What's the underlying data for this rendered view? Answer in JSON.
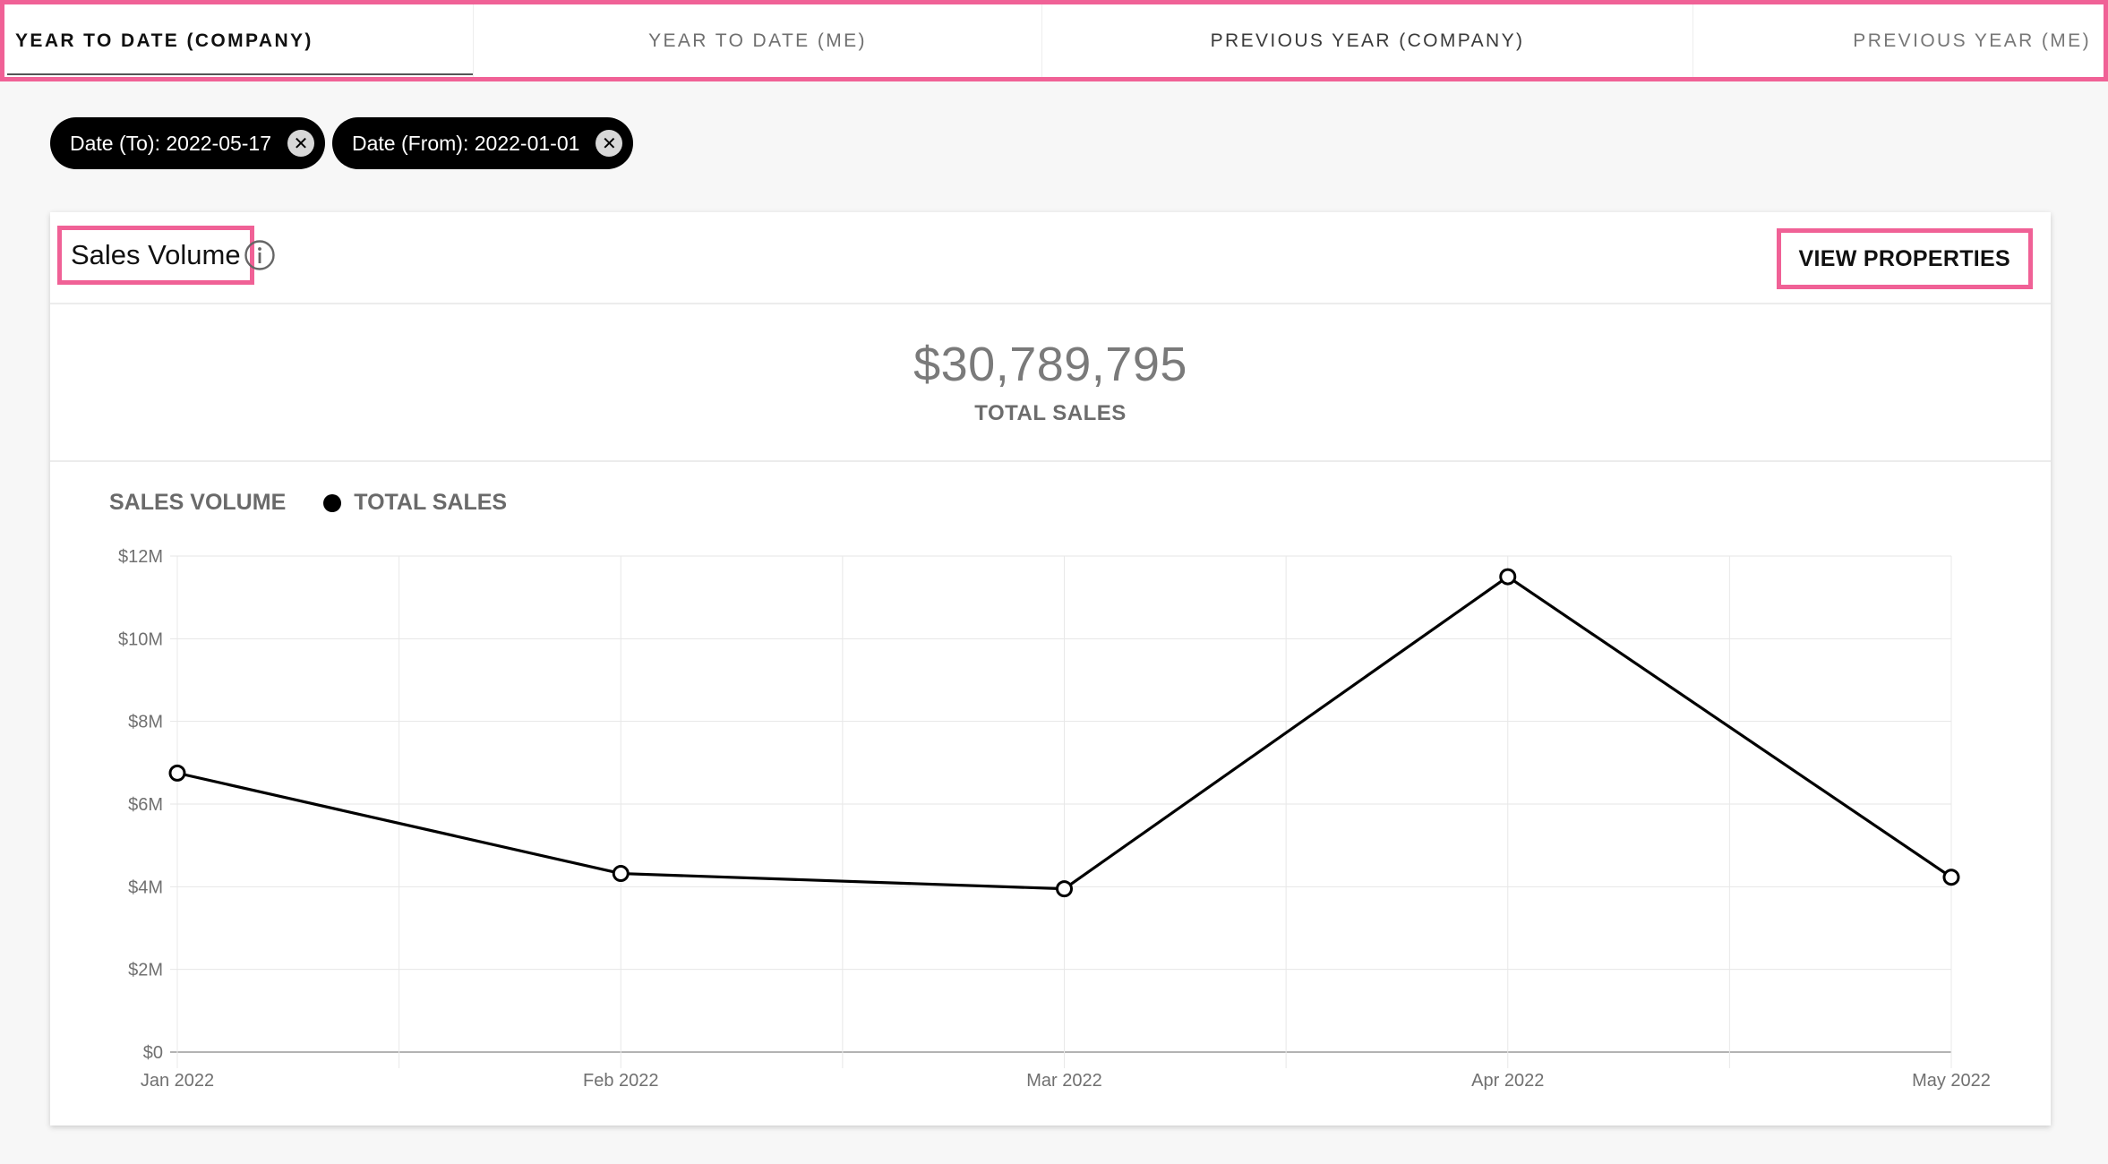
{
  "tabs": [
    {
      "label": "YEAR TO DATE (COMPANY)",
      "active": true
    },
    {
      "label": "YEAR TO DATE (ME)",
      "active": false
    },
    {
      "label": "PREVIOUS YEAR (COMPANY)",
      "active": false
    },
    {
      "label": "PREVIOUS YEAR (ME)",
      "active": false
    }
  ],
  "filters": [
    {
      "label": "Date (To): 2022-05-17",
      "close_icon": "close-icon"
    },
    {
      "label": "Date (From): 2022-01-01",
      "close_icon": "close-icon"
    }
  ],
  "card": {
    "title": "Sales Volume",
    "info_icon": "info-icon",
    "view_button_label": "VIEW PROPERTIES"
  },
  "summary": {
    "value": "$30,789,795",
    "label": "TOTAL SALES"
  },
  "colors": {
    "accent": "#f06196",
    "series": "#000000",
    "chip_bg": "#000000"
  },
  "chart_data": {
    "type": "line",
    "title": "SALES VOLUME",
    "categories": [
      "Jan 2022",
      "Feb 2022",
      "Mar 2022",
      "Apr 2022",
      "May 2022"
    ],
    "series": [
      {
        "name": "TOTAL SALES",
        "values": [
          6750000,
          4320000,
          3950000,
          11500000,
          4230000
        ]
      }
    ],
    "ylim": [
      0,
      12000000
    ],
    "yticks": [
      "$0",
      "$2M",
      "$4M",
      "$6M",
      "$8M",
      "$10M",
      "$12M"
    ],
    "grid": true,
    "legend": "top-left"
  }
}
